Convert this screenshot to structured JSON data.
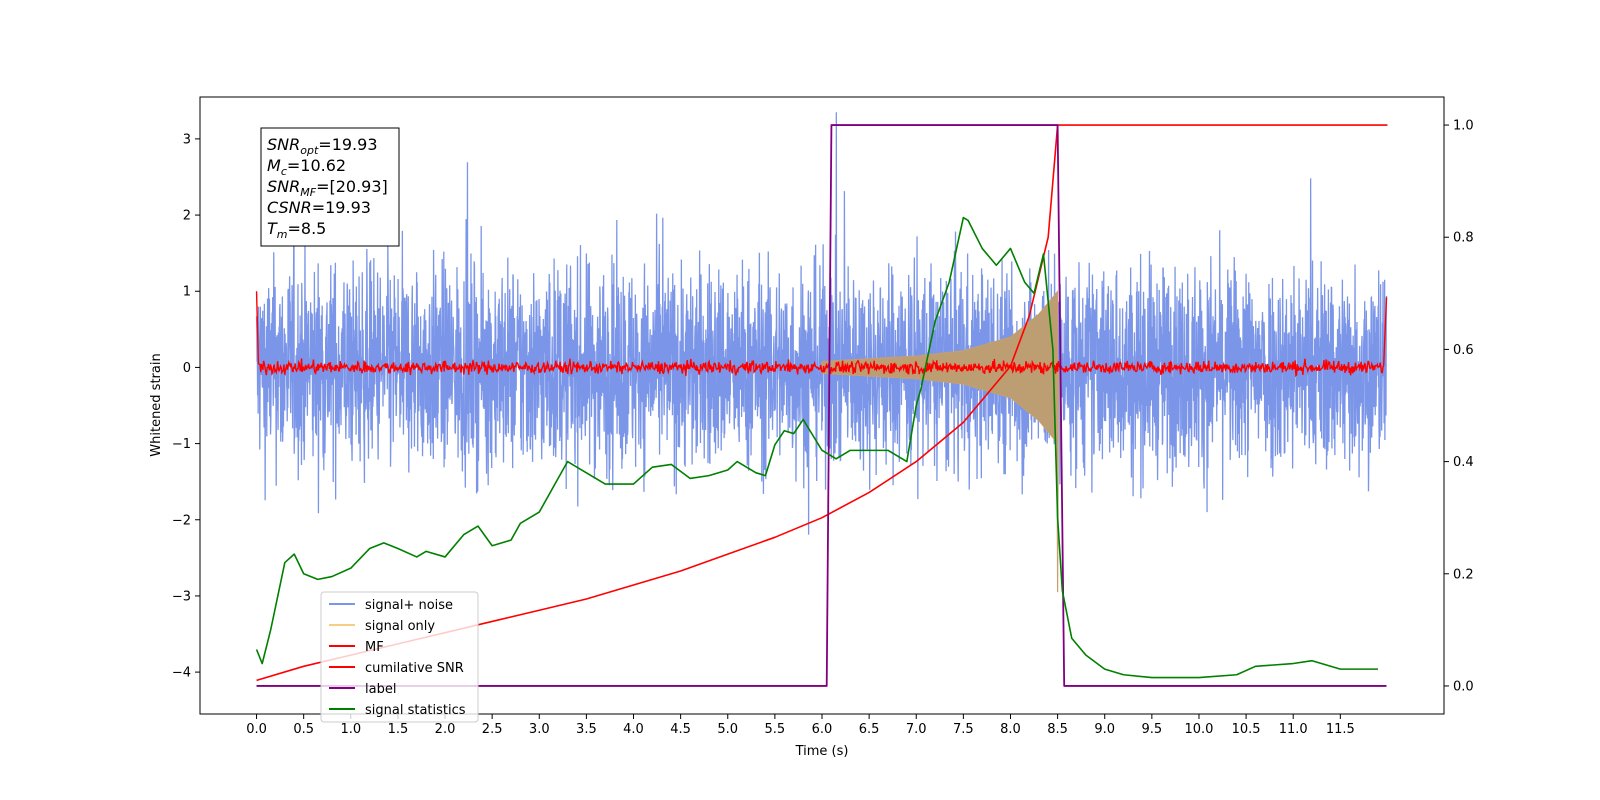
{
  "chart_data": {
    "type": "line",
    "xlabel": "Time (s)",
    "ylabel": "Whitened strain",
    "xlim": [
      -0.6,
      12.6
    ],
    "ylim": [
      -4.55,
      3.55
    ],
    "y2lim": [
      -0.05,
      1.05
    ],
    "x_ticks": [
      "0.0",
      "0.5",
      "1.0",
      "1.5",
      "2.0",
      "2.5",
      "3.0",
      "3.5",
      "4.0",
      "4.5",
      "5.0",
      "5.5",
      "6.0",
      "6.5",
      "7.0",
      "7.5",
      "8.0",
      "8.5",
      "9.0",
      "9.5",
      "10.0",
      "10.5",
      "11.0",
      "11.5"
    ],
    "y_ticks": [
      "3",
      "2",
      "1",
      "0",
      "−1",
      "−2",
      "−3",
      "−4"
    ],
    "y2_ticks": [
      "1.0",
      "0.8",
      "0.6",
      "0.4",
      "0.2",
      "0.0"
    ],
    "annotation": {
      "lines": [
        {
          "main": "SNR",
          "sub": "opt",
          "value": "=19.93"
        },
        {
          "main": "M",
          "sub": "c",
          "value": "=10.62"
        },
        {
          "main": "SNR",
          "sub": "MF",
          "value": "=[20.93]"
        },
        {
          "main": "CSNR",
          "sub": "",
          "value": "=19.93"
        },
        {
          "main": "T",
          "sub": "m",
          "value": "=8.5"
        }
      ]
    },
    "legend": {
      "position": "lower-left",
      "entries": [
        {
          "label": "signal+ noise",
          "color": "#7b96e8"
        },
        {
          "label": "signal only",
          "color": "#f5cf86"
        },
        {
          "label": "MF",
          "color": "#ff0000"
        },
        {
          "label": "cumilative SNR",
          "color": "#ff0000"
        },
        {
          "label": "label",
          "color": "#800080"
        },
        {
          "label": "signal statistics",
          "color": "#008000"
        }
      ]
    },
    "series": [
      {
        "name": "signal+ noise",
        "axis": "left",
        "color": "#7b96e8",
        "x_range": [
          0,
          11.99
        ],
        "typical_amplitude": 1.6,
        "peak": 3.35
      },
      {
        "name": "signal only",
        "axis": "left",
        "color": "#c8a06e",
        "x_range": [
          6.0,
          8.5
        ],
        "envelope": [
          {
            "x": 6.0,
            "y": 0.08
          },
          {
            "x": 7.0,
            "y": 0.15
          },
          {
            "x": 7.5,
            "y": 0.22
          },
          {
            "x": 8.0,
            "y": 0.4
          },
          {
            "x": 8.3,
            "y": 0.7
          },
          {
            "x": 8.5,
            "y": 1.0
          }
        ]
      },
      {
        "name": "MF",
        "axis": "left",
        "color": "#ff0000",
        "x_range": [
          0,
          11.99
        ],
        "noise_amplitude": 0.06,
        "edge_value": 1.0
      },
      {
        "name": "cumilative SNR",
        "axis": "right",
        "color": "#ff0000",
        "x": [
          0,
          0.5,
          1.0,
          1.5,
          2.0,
          2.5,
          3.0,
          3.5,
          4.0,
          4.5,
          5.0,
          5.5,
          6.0,
          6.5,
          7.0,
          7.5,
          8.0,
          8.2,
          8.4,
          8.5,
          8.51,
          12.0
        ],
        "y": [
          0.01,
          0.035,
          0.055,
          0.075,
          0.095,
          0.115,
          0.135,
          0.155,
          0.18,
          0.205,
          0.235,
          0.265,
          0.3,
          0.345,
          0.4,
          0.47,
          0.57,
          0.66,
          0.8,
          1.0,
          1.0,
          1.0
        ]
      },
      {
        "name": "label",
        "axis": "right",
        "color": "#800080",
        "x": [
          0,
          6.05,
          6.1,
          8.5,
          8.57,
          11.99
        ],
        "y": [
          0.0,
          0.0,
          1.0,
          1.0,
          0.0,
          0.0
        ]
      },
      {
        "name": "signal statistics",
        "axis": "right",
        "color": "#008000",
        "x": [
          0,
          0.06,
          0.15,
          0.3,
          0.4,
          0.5,
          0.65,
          0.8,
          1.0,
          1.2,
          1.35,
          1.5,
          1.7,
          1.8,
          2.0,
          2.2,
          2.35,
          2.5,
          2.7,
          2.8,
          3.0,
          3.2,
          3.3,
          3.5,
          3.7,
          4.0,
          4.2,
          4.4,
          4.6,
          4.8,
          5.0,
          5.1,
          5.3,
          5.4,
          5.5,
          5.6,
          5.7,
          5.8,
          6.0,
          6.15,
          6.3,
          6.5,
          6.7,
          6.9,
          7.0,
          7.05,
          7.2,
          7.35,
          7.5,
          7.55,
          7.7,
          7.85,
          8.0,
          8.15,
          8.25,
          8.35,
          8.45,
          8.5,
          8.55,
          8.65,
          8.8,
          9.0,
          9.2,
          9.5,
          10.0,
          10.4,
          10.6,
          11.0,
          11.2,
          11.5,
          11.9
        ],
        "y": [
          0.065,
          0.04,
          0.1,
          0.22,
          0.235,
          0.2,
          0.19,
          0.195,
          0.21,
          0.245,
          0.255,
          0.245,
          0.23,
          0.24,
          0.23,
          0.27,
          0.285,
          0.25,
          0.26,
          0.29,
          0.31,
          0.37,
          0.4,
          0.38,
          0.36,
          0.36,
          0.39,
          0.395,
          0.37,
          0.375,
          0.385,
          0.4,
          0.38,
          0.375,
          0.43,
          0.455,
          0.45,
          0.475,
          0.42,
          0.405,
          0.42,
          0.42,
          0.42,
          0.4,
          0.5,
          0.53,
          0.65,
          0.72,
          0.835,
          0.83,
          0.78,
          0.75,
          0.78,
          0.72,
          0.7,
          0.77,
          0.6,
          0.3,
          0.17,
          0.085,
          0.055,
          0.03,
          0.02,
          0.015,
          0.015,
          0.02,
          0.035,
          0.04,
          0.045,
          0.03,
          0.03
        ]
      }
    ]
  }
}
